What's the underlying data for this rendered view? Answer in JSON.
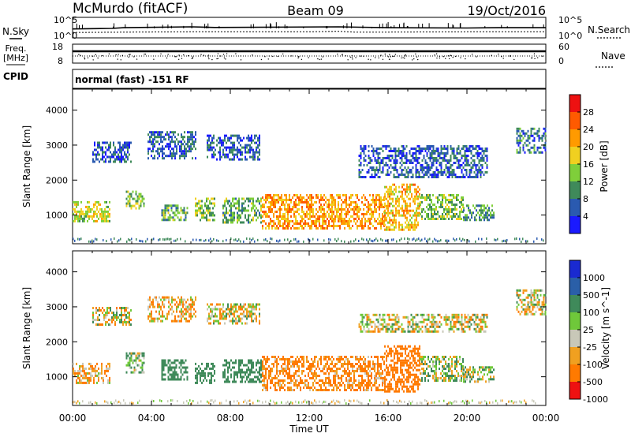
{
  "header": {
    "station": "McMurdo (fitACF)",
    "beam": "Beam 09",
    "date": "19/Oct/2016"
  },
  "left_labels": {
    "nsky": "N.Sky",
    "freq": "Freq.",
    "freq_unit": "[MHz]",
    "cpid": "CPID"
  },
  "right_labels": {
    "nsearch": "N.Search",
    "nave": "Nave"
  },
  "cpid_text": "normal (fast) -151 RF",
  "chart_data": [
    {
      "type": "line",
      "panel": "noise",
      "x_unit": "hours UT",
      "xlim": [
        0,
        24
      ],
      "y_scale": "log",
      "ylim": [
        1,
        100000
      ],
      "left_ticks": [
        "10^5",
        "10^0"
      ],
      "right_ticks": [
        "10^5",
        "10^0"
      ],
      "series": [
        {
          "values_x": [
            0,
            2,
            2.6,
            6,
            7.2,
            13.5,
            14.6,
            16,
            20,
            21.6,
            24
          ],
          "values_y": [
            150,
            200,
            300,
            500,
            350,
            500,
            400,
            300,
            250,
            300,
            300
          ]
        },
        {
          "values_x": [
            0,
            3,
            6,
            7.2,
            12,
            13.5,
            14.3,
            16,
            20,
            24
          ],
          "values_y": [
            20,
            25,
            30,
            30,
            30,
            40,
            25,
            25,
            30,
            30
          ]
        }
      ]
    },
    {
      "type": "scatter",
      "panel": "frequency",
      "xlim": [
        0,
        24
      ],
      "left_ticks": [
        "18",
        "8"
      ],
      "right_ticks": [
        "60",
        "0"
      ],
      "freq_values": [
        12,
        12,
        12
      ],
      "nave_values": [
        22,
        28,
        25
      ]
    },
    {
      "type": "heatmap",
      "panel": "power",
      "ylabel": "Slant Range [km]",
      "xlabel": "",
      "ylim": [
        180,
        4600
      ],
      "y_ticks": [
        1000,
        2000,
        3000,
        4000
      ],
      "xlim": [
        0,
        24
      ],
      "x_ticks": [
        "00:00",
        "04:00",
        "08:00",
        "12:00",
        "16:00",
        "20:00",
        "00:00"
      ],
      "colorbar": {
        "label": "Power [dB]",
        "range": [
          0,
          32
        ],
        "ticks": [
          4,
          8,
          12,
          16,
          20,
          24,
          28
        ],
        "colors": [
          "#1a1aff",
          "#2a5ab0",
          "#3f8a5a",
          "#7fcf3a",
          "#f0d020",
          "#ff9a00",
          "#ff5a00",
          "#ee1111"
        ]
      },
      "echo_regions": [
        {
          "t": [
            0.0,
            1.9
          ],
          "r": [
            800,
            1400
          ],
          "v": 16
        },
        {
          "t": [
            2.7,
            3.6
          ],
          "r": [
            1200,
            1700
          ],
          "v": 14
        },
        {
          "t": [
            4.5,
            5.8
          ],
          "r": [
            850,
            1300
          ],
          "v": 12
        },
        {
          "t": [
            6.2,
            7.2
          ],
          "r": [
            850,
            1500
          ],
          "v": 14
        },
        {
          "t": [
            7.6,
            9.6
          ],
          "r": [
            800,
            1500
          ],
          "v": 12
        },
        {
          "t": [
            9.6,
            15.8
          ],
          "r": [
            600,
            1600
          ],
          "v": 22
        },
        {
          "t": [
            15.8,
            17.6
          ],
          "r": [
            550,
            1900
          ],
          "v": 20
        },
        {
          "t": [
            17.6,
            19.8
          ],
          "r": [
            900,
            1600
          ],
          "v": 13
        },
        {
          "t": [
            19.8,
            21.4
          ],
          "r": [
            850,
            1300
          ],
          "v": 10
        },
        {
          "t": [
            1.0,
            3.0
          ],
          "r": [
            2500,
            3100
          ],
          "v": 6
        },
        {
          "t": [
            3.8,
            6.2
          ],
          "r": [
            2600,
            3400
          ],
          "v": 7
        },
        {
          "t": [
            6.8,
            9.5
          ],
          "r": [
            2600,
            3300
          ],
          "v": 6
        },
        {
          "t": [
            14.5,
            21.0
          ],
          "r": [
            2100,
            3000
          ],
          "v": 6
        },
        {
          "t": [
            22.5,
            24.0
          ],
          "r": [
            2800,
            3500
          ],
          "v": 8
        }
      ]
    },
    {
      "type": "heatmap",
      "panel": "velocity",
      "ylabel": "Slant Range [km]",
      "xlabel": "Time UT",
      "ylim": [
        180,
        4600
      ],
      "y_ticks": [
        1000,
        2000,
        3000,
        4000
      ],
      "xlim": [
        0,
        24
      ],
      "x_ticks": [
        "00:00",
        "04:00",
        "08:00",
        "12:00",
        "16:00",
        "20:00",
        "00:00"
      ],
      "colorbar": {
        "label": "Velocity [m s^-1]",
        "ticks": [
          "1000",
          "500",
          "100",
          "25",
          "-25",
          "-100",
          "-500",
          "-1000"
        ],
        "colors": [
          "#1a2ad0",
          "#2a5fa8",
          "#3f8a5a",
          "#6fc83a",
          "#c8c8b8",
          "#f0a020",
          "#ff7a00",
          "#ee1111"
        ]
      },
      "echo_regions": [
        {
          "t": [
            0.0,
            1.9
          ],
          "r": [
            800,
            1400
          ],
          "v": -100
        },
        {
          "t": [
            2.7,
            3.6
          ],
          "r": [
            1100,
            1700
          ],
          "v": 100
        },
        {
          "t": [
            4.5,
            5.8
          ],
          "r": [
            900,
            1500
          ],
          "v": 300
        },
        {
          "t": [
            6.2,
            7.2
          ],
          "r": [
            850,
            1400
          ],
          "v": 300
        },
        {
          "t": [
            7.6,
            9.6
          ],
          "r": [
            850,
            1500
          ],
          "v": 300
        },
        {
          "t": [
            9.6,
            15.8
          ],
          "r": [
            650,
            1600
          ],
          "v": -150
        },
        {
          "t": [
            15.8,
            17.6
          ],
          "r": [
            550,
            1900
          ],
          "v": -300
        },
        {
          "t": [
            17.6,
            19.8
          ],
          "r": [
            900,
            1600
          ],
          "v": 50
        },
        {
          "t": [
            19.8,
            21.4
          ],
          "r": [
            850,
            1300
          ],
          "v": 50
        },
        {
          "t": [
            1.0,
            3.0
          ],
          "r": [
            2500,
            3000
          ],
          "v": 0
        },
        {
          "t": [
            3.8,
            6.2
          ],
          "r": [
            2600,
            3300
          ],
          "v": -80
        },
        {
          "t": [
            6.8,
            9.5
          ],
          "r": [
            2500,
            3100
          ],
          "v": 0
        },
        {
          "t": [
            14.5,
            21.0
          ],
          "r": [
            2300,
            2800
          ],
          "v": 0
        },
        {
          "t": [
            22.5,
            24.0
          ],
          "r": [
            2800,
            3500
          ],
          "v": 0
        }
      ]
    }
  ]
}
